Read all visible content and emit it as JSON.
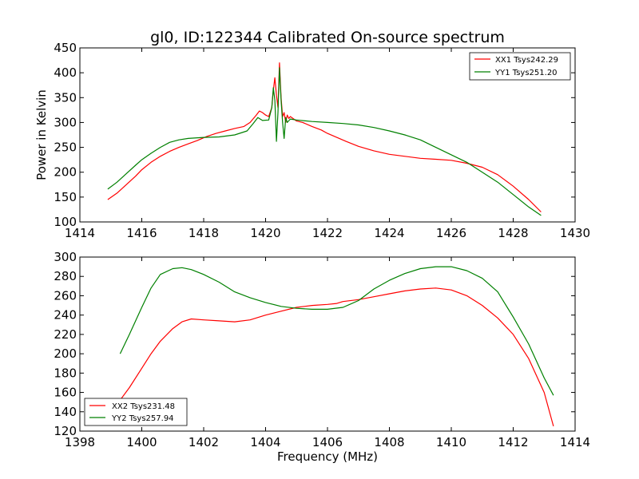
{
  "figure_title": "gl0, ID:122344 Calibrated On-source spectrum",
  "chart_data": [
    {
      "type": "line",
      "title": "gl0, ID:122344 Calibrated On-source spectrum",
      "xlabel": "",
      "ylabel": "Power in Kelvin",
      "xlim": [
        1414,
        1430
      ],
      "ylim": [
        100,
        450
      ],
      "xticks": [
        1414,
        1416,
        1418,
        1420,
        1422,
        1424,
        1426,
        1428,
        1430
      ],
      "yticks": [
        100,
        150,
        200,
        250,
        300,
        350,
        400,
        450
      ],
      "grid": false,
      "legend_position": "top-right",
      "series": [
        {
          "name": "XX1 Tsys242.29",
          "color": "#ff0000",
          "points": [
            [
              1414.9,
              145
            ],
            [
              1415.2,
              158
            ],
            [
              1415.5,
              175
            ],
            [
              1415.8,
              192
            ],
            [
              1416.0,
              205
            ],
            [
              1416.3,
              220
            ],
            [
              1416.6,
              232
            ],
            [
              1416.9,
              242
            ],
            [
              1417.2,
              250
            ],
            [
              1417.5,
              257
            ],
            [
              1417.8,
              264
            ],
            [
              1418.1,
              272
            ],
            [
              1418.4,
              278
            ],
            [
              1418.7,
              283
            ],
            [
              1419.0,
              288
            ],
            [
              1419.3,
              292
            ],
            [
              1419.5,
              300
            ],
            [
              1419.7,
              315
            ],
            [
              1419.8,
              323
            ],
            [
              1419.9,
              320
            ],
            [
              1420.0,
              315
            ],
            [
              1420.1,
              312
            ],
            [
              1420.2,
              330
            ],
            [
              1420.25,
              365
            ],
            [
              1420.3,
              390
            ],
            [
              1420.35,
              355
            ],
            [
              1420.4,
              330
            ],
            [
              1420.45,
              420
            ],
            [
              1420.5,
              350
            ],
            [
              1420.55,
              312
            ],
            [
              1420.6,
              320
            ],
            [
              1420.65,
              300
            ],
            [
              1420.7,
              315
            ],
            [
              1420.75,
              308
            ],
            [
              1420.8,
              312
            ],
            [
              1421.0,
              303
            ],
            [
              1421.2,
              300
            ],
            [
              1421.5,
              292
            ],
            [
              1421.8,
              285
            ],
            [
              1422.0,
              278
            ],
            [
              1422.3,
              270
            ],
            [
              1422.6,
              262
            ],
            [
              1423.0,
              252
            ],
            [
              1423.5,
              243
            ],
            [
              1424.0,
              236
            ],
            [
              1424.5,
              232
            ],
            [
              1425.0,
              228
            ],
            [
              1425.5,
              226
            ],
            [
              1426.0,
              224
            ],
            [
              1426.5,
              218
            ],
            [
              1427.0,
              210
            ],
            [
              1427.5,
              195
            ],
            [
              1428.0,
              172
            ],
            [
              1428.5,
              145
            ],
            [
              1428.9,
              120
            ]
          ]
        },
        {
          "name": "YY1 Tsys251.20",
          "color": "#008000",
          "points": [
            [
              1414.9,
              166
            ],
            [
              1415.2,
              180
            ],
            [
              1415.5,
              197
            ],
            [
              1415.8,
              214
            ],
            [
              1416.0,
              225
            ],
            [
              1416.3,
              238
            ],
            [
              1416.6,
              250
            ],
            [
              1416.9,
              260
            ],
            [
              1417.2,
              265
            ],
            [
              1417.5,
              268
            ],
            [
              1418.0,
              270
            ],
            [
              1418.5,
              271
            ],
            [
              1419.0,
              275
            ],
            [
              1419.4,
              283
            ],
            [
              1419.6,
              298
            ],
            [
              1419.75,
              310
            ],
            [
              1419.9,
              304
            ],
            [
              1420.1,
              305
            ],
            [
              1420.2,
              330
            ],
            [
              1420.25,
              370
            ],
            [
              1420.3,
              345
            ],
            [
              1420.35,
              262
            ],
            [
              1420.4,
              320
            ],
            [
              1420.45,
              410
            ],
            [
              1420.5,
              345
            ],
            [
              1420.55,
              300
            ],
            [
              1420.6,
              268
            ],
            [
              1420.65,
              310
            ],
            [
              1420.7,
              300
            ],
            [
              1420.8,
              307
            ],
            [
              1421.0,
              305
            ],
            [
              1421.5,
              302
            ],
            [
              1422.0,
              300
            ],
            [
              1422.5,
              298
            ],
            [
              1423.0,
              295
            ],
            [
              1423.5,
              290
            ],
            [
              1424.0,
              283
            ],
            [
              1424.5,
              275
            ],
            [
              1425.0,
              265
            ],
            [
              1425.5,
              250
            ],
            [
              1426.0,
              235
            ],
            [
              1426.5,
              220
            ],
            [
              1427.0,
              200
            ],
            [
              1427.5,
              180
            ],
            [
              1428.0,
              155
            ],
            [
              1428.5,
              130
            ],
            [
              1428.9,
              113
            ]
          ]
        }
      ]
    },
    {
      "type": "line",
      "title": "",
      "xlabel": "Frequency (MHz)",
      "ylabel": "",
      "xlim": [
        1398,
        1414
      ],
      "ylim": [
        120,
        300
      ],
      "xticks": [
        1398,
        1400,
        1402,
        1404,
        1406,
        1408,
        1410,
        1412,
        1414
      ],
      "yticks": [
        120,
        140,
        160,
        180,
        200,
        220,
        240,
        260,
        280,
        300
      ],
      "grid": false,
      "legend_position": "bottom-left",
      "series": [
        {
          "name": "XX2 Tsys231.48",
          "color": "#ff0000",
          "points": [
            [
              1399.3,
              152
            ],
            [
              1399.6,
              165
            ],
            [
              1400.0,
              185
            ],
            [
              1400.3,
              200
            ],
            [
              1400.6,
              213
            ],
            [
              1401.0,
              226
            ],
            [
              1401.3,
              233
            ],
            [
              1401.6,
              236
            ],
            [
              1402.0,
              235
            ],
            [
              1402.5,
              234
            ],
            [
              1403.0,
              233
            ],
            [
              1403.5,
              235
            ],
            [
              1404.0,
              240
            ],
            [
              1404.5,
              244
            ],
            [
              1405.0,
              248
            ],
            [
              1405.5,
              250
            ],
            [
              1406.0,
              251
            ],
            [
              1406.3,
              252
            ],
            [
              1406.5,
              254
            ],
            [
              1407.0,
              256
            ],
            [
              1407.5,
              259
            ],
            [
              1408.0,
              262
            ],
            [
              1408.5,
              265
            ],
            [
              1409.0,
              267
            ],
            [
              1409.5,
              268
            ],
            [
              1410.0,
              266
            ],
            [
              1410.5,
              260
            ],
            [
              1411.0,
              250
            ],
            [
              1411.5,
              237
            ],
            [
              1412.0,
              220
            ],
            [
              1412.5,
              195
            ],
            [
              1413.0,
              160
            ],
            [
              1413.3,
              125
            ]
          ]
        },
        {
          "name": "YY2 Tsys257.94",
          "color": "#008000",
          "points": [
            [
              1399.3,
              200
            ],
            [
              1399.6,
              220
            ],
            [
              1400.0,
              248
            ],
            [
              1400.3,
              268
            ],
            [
              1400.6,
              282
            ],
            [
              1401.0,
              288
            ],
            [
              1401.3,
              289
            ],
            [
              1401.6,
              287
            ],
            [
              1402.0,
              282
            ],
            [
              1402.5,
              274
            ],
            [
              1403.0,
              264
            ],
            [
              1403.5,
              258
            ],
            [
              1404.0,
              253
            ],
            [
              1404.5,
              249
            ],
            [
              1405.0,
              247
            ],
            [
              1405.5,
              246
            ],
            [
              1406.0,
              246
            ],
            [
              1406.5,
              248
            ],
            [
              1407.0,
              255
            ],
            [
              1407.5,
              267
            ],
            [
              1408.0,
              276
            ],
            [
              1408.5,
              283
            ],
            [
              1409.0,
              288
            ],
            [
              1409.5,
              290
            ],
            [
              1410.0,
              290
            ],
            [
              1410.5,
              286
            ],
            [
              1411.0,
              278
            ],
            [
              1411.5,
              264
            ],
            [
              1412.0,
              238
            ],
            [
              1412.5,
              210
            ],
            [
              1413.0,
              175
            ],
            [
              1413.3,
              157
            ]
          ]
        }
      ]
    }
  ]
}
